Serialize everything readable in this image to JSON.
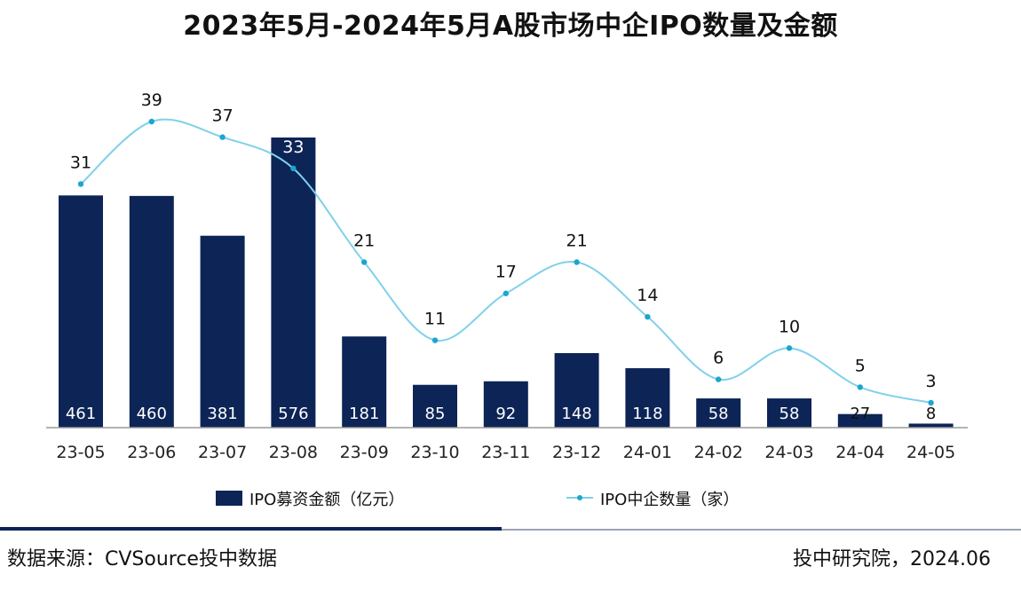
{
  "title": "2023年5月-2024年5月A股市场中企IPO数量及金额",
  "footer": {
    "source": "数据来源：CVSource投中数据",
    "credit": "投中研究院，2024.06"
  },
  "colors": {
    "bar": "#0d2456",
    "line": "#7fd1ea",
    "marker": "#1aa6cf"
  },
  "chart_data": {
    "type": "bar",
    "categories": [
      "23-05",
      "23-06",
      "23-07",
      "23-08",
      "23-09",
      "23-10",
      "23-11",
      "23-12",
      "24-01",
      "24-02",
      "24-03",
      "24-04",
      "24-05"
    ],
    "series": [
      {
        "name": "IPO募资金额（亿元）",
        "type": "bar",
        "values": [
          461,
          460,
          381,
          576,
          181,
          85,
          92,
          148,
          118,
          58,
          58,
          27,
          8
        ]
      },
      {
        "name": "IPO中企数量（家）",
        "type": "line",
        "smooth": true,
        "values": [
          31,
          39,
          37,
          33,
          21,
          11,
          17,
          21,
          14,
          6,
          10,
          5,
          3
        ]
      }
    ],
    "legend_position": "bottom",
    "grid": false
  }
}
